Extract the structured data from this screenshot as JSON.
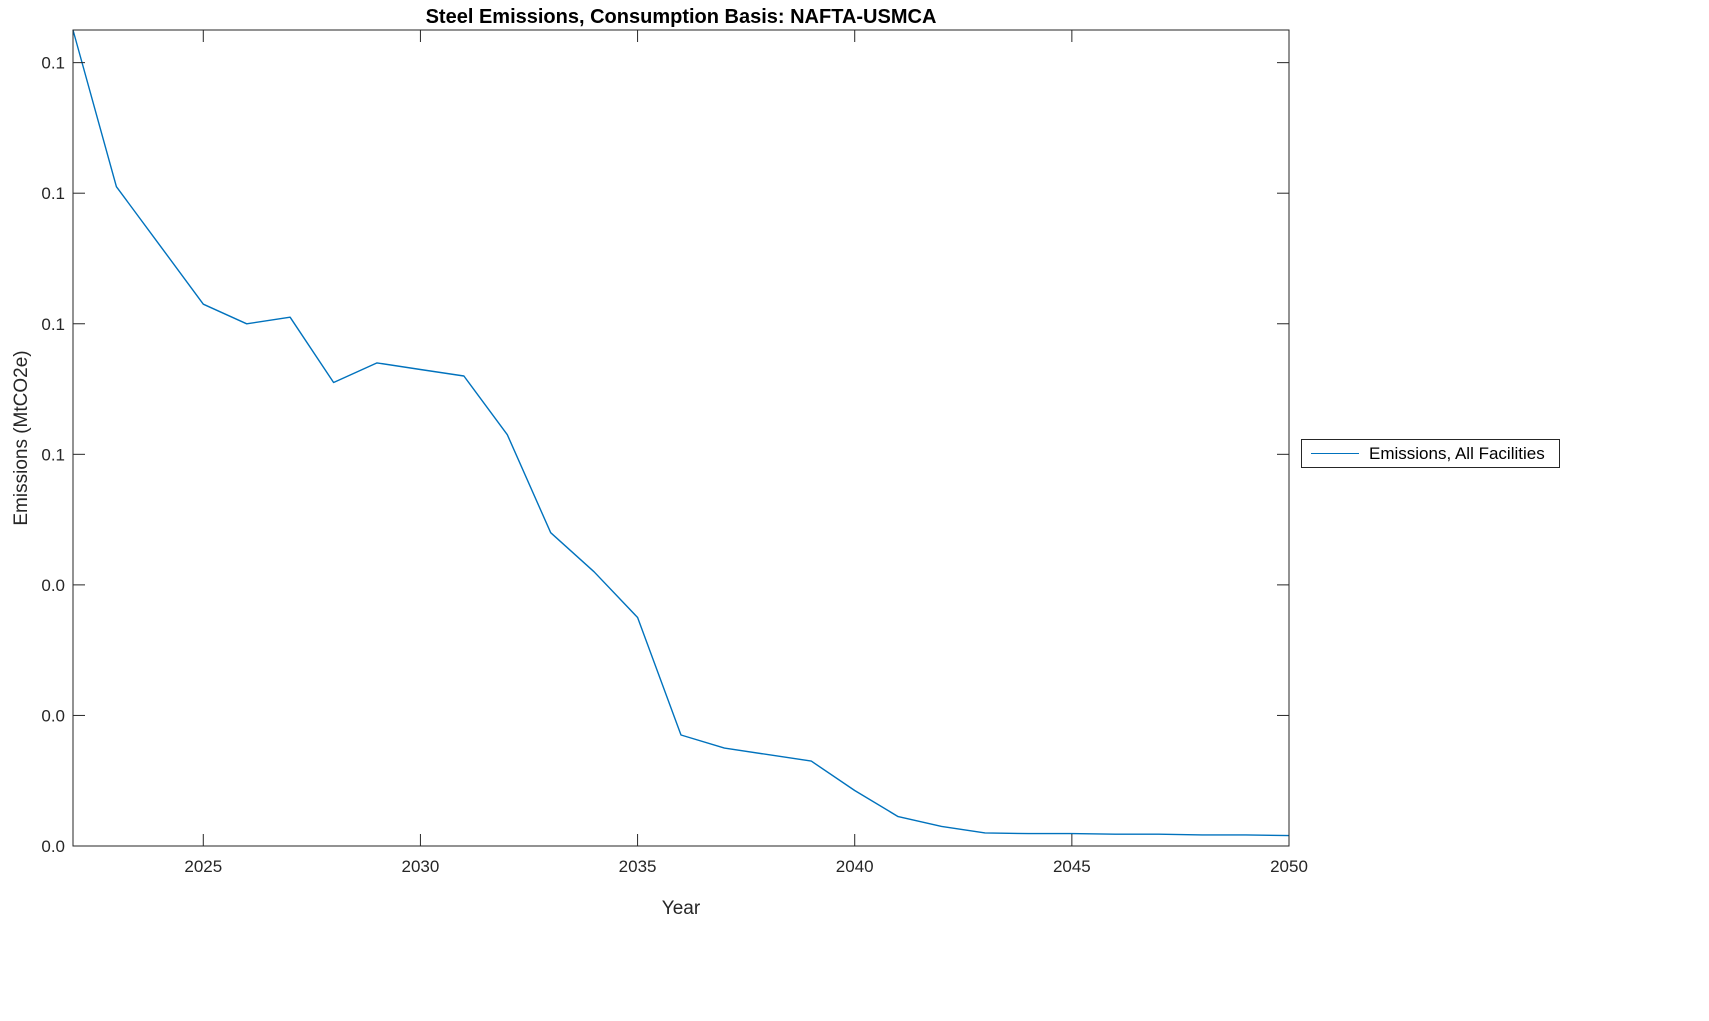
{
  "chart_data": {
    "type": "line",
    "title": "Steel Emissions, Consumption Basis: NAFTA-USMCA",
    "xlabel": "Year",
    "ylabel": "Emissions (MtCO2e)",
    "xlim": [
      2022,
      2050
    ],
    "ylim": [
      0,
      0.125
    ],
    "grid": false,
    "legend_position": "right-outside",
    "x_ticks": {
      "values": [
        2025,
        2030,
        2035,
        2040,
        2045,
        2050
      ],
      "labels": [
        "2025",
        "2030",
        "2035",
        "2040",
        "2045",
        "2050"
      ]
    },
    "y_ticks": {
      "values": [
        0,
        0.02,
        0.04,
        0.06,
        0.08,
        0.1,
        0.12
      ],
      "labels": [
        "0.0",
        "0.0",
        "0.0",
        "0.1",
        "0.1",
        "0.1",
        "0.1"
      ]
    },
    "series": [
      {
        "name": "Emissions, All Facilities",
        "color": "#0072BD",
        "x": [
          2022,
          2023,
          2024,
          2025,
          2026,
          2027,
          2028,
          2029,
          2030,
          2031,
          2032,
          2033,
          2034,
          2035,
          2036,
          2037,
          2038,
          2039,
          2040,
          2041,
          2042,
          2043,
          2044,
          2045,
          2046,
          2047,
          2048,
          2049,
          2050
        ],
        "y": [
          0.125,
          0.101,
          0.092,
          0.083,
          0.08,
          0.081,
          0.071,
          0.074,
          0.073,
          0.072,
          0.063,
          0.048,
          0.042,
          0.035,
          0.017,
          0.015,
          0.014,
          0.013,
          0.0085,
          0.0045,
          0.003,
          0.002,
          0.0019,
          0.0019,
          0.0018,
          0.0018,
          0.0017,
          0.0017,
          0.0016
        ]
      }
    ]
  },
  "colors": {
    "line": "#0072BD",
    "axis": "#262626",
    "background": "#FFFFFF"
  }
}
